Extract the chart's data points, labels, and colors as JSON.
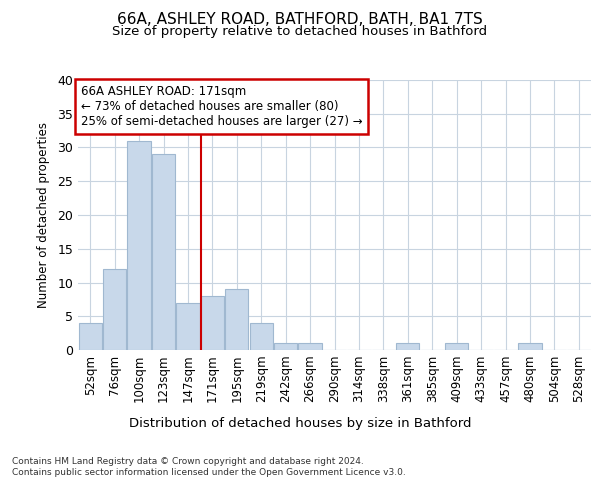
{
  "title": "66A, ASHLEY ROAD, BATHFORD, BATH, BA1 7TS",
  "subtitle": "Size of property relative to detached houses in Bathford",
  "xlabel": "Distribution of detached houses by size in Bathford",
  "ylabel": "Number of detached properties",
  "bar_color": "#c8d8ea",
  "bar_edgecolor": "#a0b8d0",
  "marker_line_color": "#cc0000",
  "grid_color": "#c8d4e0",
  "bg_color": "#ffffff",
  "categories": [
    "52sqm",
    "76sqm",
    "100sqm",
    "123sqm",
    "147sqm",
    "171sqm",
    "195sqm",
    "219sqm",
    "242sqm",
    "266sqm",
    "290sqm",
    "314sqm",
    "338sqm",
    "361sqm",
    "385sqm",
    "409sqm",
    "433sqm",
    "457sqm",
    "480sqm",
    "504sqm",
    "528sqm"
  ],
  "values": [
    4,
    12,
    31,
    29,
    7,
    8,
    9,
    4,
    1,
    1,
    0,
    0,
    0,
    1,
    0,
    1,
    0,
    0,
    1,
    0,
    0
  ],
  "marker_index": 5,
  "annotation_line1": "66A ASHLEY ROAD: 171sqm",
  "annotation_line2": "← 73% of detached houses are smaller (80)",
  "annotation_line3": "25% of semi-detached houses are larger (27) →",
  "footer_text": "Contains HM Land Registry data © Crown copyright and database right 2024.\nContains public sector information licensed under the Open Government Licence v3.0.",
  "ylim": [
    0,
    40
  ],
  "yticks": [
    0,
    5,
    10,
    15,
    20,
    25,
    30,
    35,
    40
  ],
  "annotation_box_facecolor": "#ffffff",
  "annotation_box_edgecolor": "#cc0000"
}
